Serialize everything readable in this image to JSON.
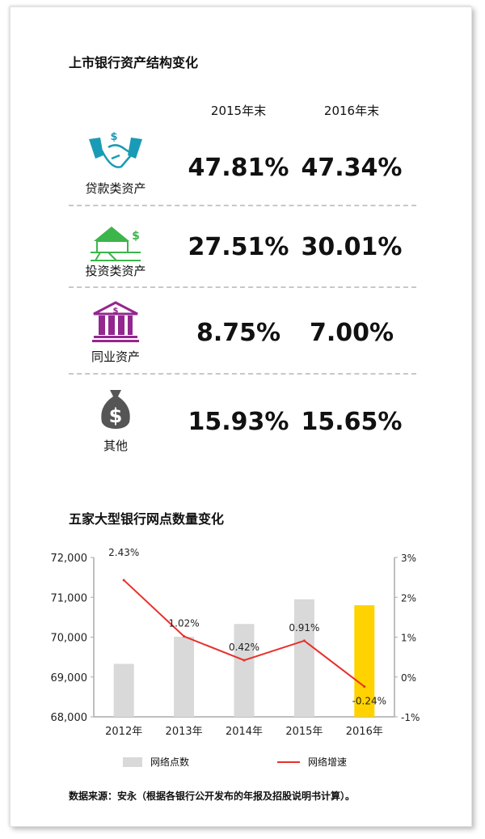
{
  "section1": {
    "title": "上市银行资产结构变化",
    "columns": [
      "2015年末",
      "2016年末"
    ],
    "rows": [
      {
        "label": "贷款类资产",
        "icon": "handshake-dollar-icon",
        "color": "#1a9bb5",
        "v2015": "47.81%",
        "v2016": "47.34%"
      },
      {
        "label": "投资类资产",
        "icon": "house-dollar-icon",
        "color": "#3cb54a",
        "v2015": "27.51%",
        "v2016": "30.01%"
      },
      {
        "label": "同业资产",
        "icon": "bank-building-icon",
        "color": "#93278f",
        "v2015": "8.75%",
        "v2016": "7.00%"
      },
      {
        "label": "其他",
        "icon": "money-bag-icon",
        "color": "#555555",
        "v2015": "15.93%",
        "v2016": "15.65%"
      }
    ]
  },
  "section2": {
    "title": "五家大型银行网点数量变化"
  },
  "chart_data": {
    "type": "bar+line",
    "categories": [
      "2012年",
      "2013年",
      "2014年",
      "2015年",
      "2016年"
    ],
    "series": [
      {
        "name": "网络点数",
        "type": "bar",
        "axis": "left",
        "values": [
          69330,
          70010,
          70330,
          70950,
          70800
        ],
        "colors": [
          "#d9d9d9",
          "#d9d9d9",
          "#d9d9d9",
          "#d9d9d9",
          "#ffd200"
        ]
      },
      {
        "name": "网络增速",
        "type": "line",
        "axis": "right",
        "values": [
          2.43,
          1.02,
          0.42,
          0.91,
          -0.24
        ],
        "labels": [
          "2.43%",
          "1.02%",
          "0.42%",
          "0.91%",
          "-0.24%"
        ],
        "color": "#e8302a"
      }
    ],
    "left_axis": {
      "ylim": [
        68000,
        72000
      ],
      "ticks": [
        "68,000",
        "69,000",
        "70,000",
        "71,000",
        "72,000"
      ]
    },
    "right_axis": {
      "ylim": [
        -1,
        3
      ],
      "ticks": [
        "-1%",
        "0%",
        "1%",
        "2%",
        "3%"
      ]
    },
    "grid": false,
    "legend": "bottom"
  },
  "source": "数据来源：安永（根据各银行公开发布的年报及招股说明书计算）。"
}
